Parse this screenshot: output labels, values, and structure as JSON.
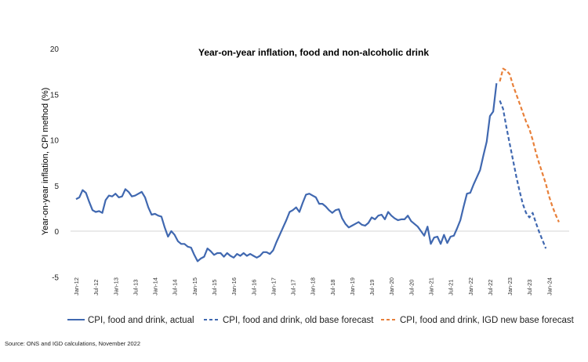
{
  "chart_data": {
    "type": "line",
    "title": "Year-on-year  inflation,  food and non-alcoholic  drink",
    "xlabel": "",
    "ylabel": "Year-on-year inflation, CPI method (%)",
    "ylim": [
      -5,
      20
    ],
    "yticks": [
      "20",
      "15",
      "10",
      "5",
      "0",
      "-5"
    ],
    "ytick_values": [
      20,
      15,
      10,
      5,
      0,
      -5
    ],
    "grid": false,
    "zero_line": true,
    "x_start": "Jan-12",
    "x_months": 149,
    "x_tick_labels": [
      "Jan-12",
      "Jul-12",
      "Jan-13",
      "Jul-13",
      "Jan-14",
      "Jul-14",
      "Jan-15",
      "Jul-15",
      "Jan-16",
      "Jul-16",
      "Jan-17",
      "Jul-17",
      "Jan-18",
      "Jul-18",
      "Jan-19",
      "Jul-19",
      "Jan-20",
      "Jul-20",
      "Jan-21",
      "Jul-21",
      "Jan-22",
      "Jul-22",
      "Jan-23",
      "Jul-23",
      "Jan-24"
    ],
    "legend_position": "bottom",
    "series": [
      {
        "name": "CPI, food and drink, actual",
        "color": "#4068b0",
        "style": "solid",
        "start_index": 0,
        "values": [
          3.5,
          3.7,
          4.5,
          4.2,
          3.2,
          2.3,
          2.1,
          2.2,
          2.0,
          3.4,
          3.9,
          3.8,
          4.1,
          3.7,
          3.8,
          4.6,
          4.3,
          3.8,
          3.9,
          4.1,
          4.3,
          3.7,
          2.6,
          1.8,
          1.9,
          1.7,
          1.6,
          0.4,
          -0.6,
          0.0,
          -0.4,
          -1.1,
          -1.4,
          -1.4,
          -1.7,
          -1.8,
          -2.6,
          -3.3,
          -3.0,
          -2.8,
          -1.9,
          -2.2,
          -2.6,
          -2.4,
          -2.4,
          -2.8,
          -2.4,
          -2.7,
          -2.9,
          -2.5,
          -2.7,
          -2.4,
          -2.7,
          -2.5,
          -2.7,
          -2.9,
          -2.7,
          -2.3,
          -2.3,
          -2.5,
          -2.1,
          -1.2,
          -0.4,
          0.4,
          1.2,
          2.1,
          2.3,
          2.6,
          2.1,
          3.1,
          4.0,
          4.1,
          3.9,
          3.7,
          3.0,
          3.0,
          2.7,
          2.3,
          2.0,
          2.3,
          2.4,
          1.4,
          0.8,
          0.4,
          0.6,
          0.8,
          1.0,
          0.7,
          0.6,
          0.9,
          1.5,
          1.3,
          1.7,
          1.8,
          1.3,
          2.1,
          1.7,
          1.4,
          1.2,
          1.3,
          1.3,
          1.7,
          1.1,
          0.8,
          0.5,
          0.0,
          -0.5,
          0.5,
          -1.4,
          -0.7,
          -0.6,
          -1.4,
          -0.4,
          -1.3,
          -0.6,
          -0.5,
          0.3,
          1.2,
          2.7,
          4.1,
          4.2,
          5.1,
          5.9,
          6.7,
          8.3,
          9.8,
          12.6,
          13.1,
          16.2
        ]
      },
      {
        "name": "CPI, food and drink, old base forecast",
        "color": "#4068b0",
        "style": "dashed",
        "start_index": 129,
        "values": [
          14.3,
          13.4,
          11.4,
          9.6,
          7.8,
          6.0,
          4.4,
          3.0,
          2.0,
          1.5,
          2.0,
          0.9,
          -0.1,
          -1.0,
          -1.9
        ]
      },
      {
        "name": "CPI, food and drink, IGD new base forecast",
        "color": "#e8803a",
        "style": "dashed",
        "start_index": 129,
        "values": [
          16.4,
          17.8,
          17.6,
          17.2,
          16.0,
          15.0,
          14.0,
          13.0,
          12.0,
          11.2,
          10.0,
          8.6,
          7.4,
          6.3,
          5.2,
          3.8,
          2.7,
          1.8,
          1.0
        ]
      }
    ]
  },
  "source": "Source: ONS and IGD calculations, November  2022"
}
